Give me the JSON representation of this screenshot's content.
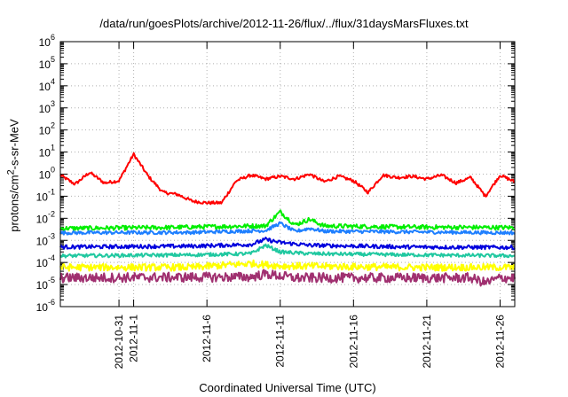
{
  "chart_data": {
    "type": "line",
    "title": "/data/run/goesPlots/archive/2012-11-26/flux/../flux/31daysMarsFluxes.txt",
    "xlabel": "Coordinated Universal Time (UTC)",
    "ylabel_html": "protons/cm<sup>2</sup>-s-sr-MeV",
    "yscale": "log",
    "ylim_exp": [
      -6,
      6
    ],
    "ytick_labels": [
      {
        "base": "10",
        "exp": "-6"
      },
      {
        "base": "10",
        "exp": "-5"
      },
      {
        "base": "10",
        "exp": "-4"
      },
      {
        "base": "10",
        "exp": "-3"
      },
      {
        "base": "10",
        "exp": "-2"
      },
      {
        "base": "10",
        "exp": "-1"
      },
      {
        "base": "10",
        "exp": "0"
      },
      {
        "base": "10",
        "exp": "1"
      },
      {
        "base": "10",
        "exp": "2"
      },
      {
        "base": "10",
        "exp": "3"
      },
      {
        "base": "10",
        "exp": "4"
      },
      {
        "base": "10",
        "exp": "5"
      },
      {
        "base": "10",
        "exp": "6"
      }
    ],
    "xlim": [
      "2012-10-27",
      "2012-11-27"
    ],
    "xticks": [
      {
        "date": "2012-10-31",
        "label": "2012-10-31"
      },
      {
        "date": "2012-11-01",
        "label": "2012-11-1"
      },
      {
        "date": "2012-11-06",
        "label": "2012-11-6"
      },
      {
        "date": "2012-11-11",
        "label": "2012-11-11"
      },
      {
        "date": "2012-11-16",
        "label": "2012-11-16"
      },
      {
        "date": "2012-11-21",
        "label": "2012-11-21"
      },
      {
        "date": "2012-11-26",
        "label": "2012-11-26"
      }
    ],
    "grid": true,
    "series": [
      {
        "color": "#ff0000",
        "points": [
          [
            "2012-10-27",
            0.9
          ],
          [
            "2012-10-28",
            0.35
          ],
          [
            "2012-10-29",
            1.2
          ],
          [
            "2012-10-30",
            0.4
          ],
          [
            "2012-10-31",
            0.5
          ],
          [
            "2012-11-01",
            8.0
          ],
          [
            "2012-11-02",
            0.8
          ],
          [
            "2012-11-03",
            0.15
          ],
          [
            "2012-11-04",
            0.12
          ],
          [
            "2012-11-05",
            0.06
          ],
          [
            "2012-11-06",
            0.05
          ],
          [
            "2012-11-07",
            0.05
          ],
          [
            "2012-11-08",
            0.5
          ],
          [
            "2012-11-09",
            0.9
          ],
          [
            "2012-11-10",
            0.6
          ],
          [
            "2012-11-11",
            0.8
          ],
          [
            "2012-11-12",
            0.6
          ],
          [
            "2012-11-13",
            1.0
          ],
          [
            "2012-11-14",
            0.45
          ],
          [
            "2012-11-15",
            0.8
          ],
          [
            "2012-11-16",
            0.5
          ],
          [
            "2012-11-17",
            0.15
          ],
          [
            "2012-11-18",
            0.9
          ],
          [
            "2012-11-19",
            0.7
          ],
          [
            "2012-11-20",
            0.8
          ],
          [
            "2012-11-21",
            0.6
          ],
          [
            "2012-11-22",
            0.9
          ],
          [
            "2012-11-23",
            0.4
          ],
          [
            "2012-11-24",
            0.7
          ],
          [
            "2012-11-25",
            0.1
          ],
          [
            "2012-11-26",
            0.9
          ],
          [
            "2012-11-27",
            0.45
          ]
        ]
      },
      {
        "color": "#00ee00",
        "points": [
          [
            "2012-10-27",
            0.0035
          ],
          [
            "2012-11-03",
            0.0038
          ],
          [
            "2012-11-09",
            0.0045
          ],
          [
            "2012-11-10",
            0.0045
          ],
          [
            "2012-11-11",
            0.02
          ],
          [
            "2012-11-12",
            0.005
          ],
          [
            "2012-11-13",
            0.009
          ],
          [
            "2012-11-14",
            0.0045
          ],
          [
            "2012-11-20",
            0.004
          ],
          [
            "2012-11-27",
            0.0038
          ]
        ]
      },
      {
        "color": "#1e7fff",
        "points": [
          [
            "2012-10-27",
            0.0022
          ],
          [
            "2012-11-05",
            0.0023
          ],
          [
            "2012-11-10",
            0.0028
          ],
          [
            "2012-11-11",
            0.006
          ],
          [
            "2012-11-12",
            0.0025
          ],
          [
            "2012-11-13",
            0.0035
          ],
          [
            "2012-11-14",
            0.0026
          ],
          [
            "2012-11-27",
            0.0022
          ]
        ]
      },
      {
        "color": "#0000dd",
        "points": [
          [
            "2012-10-27",
            0.0005
          ],
          [
            "2012-11-05",
            0.00055
          ],
          [
            "2012-11-09",
            0.00065
          ],
          [
            "2012-11-10",
            0.0011
          ],
          [
            "2012-11-11",
            0.0008
          ],
          [
            "2012-11-13",
            0.0006
          ],
          [
            "2012-11-20",
            0.0005
          ],
          [
            "2012-11-27",
            0.00048
          ]
        ]
      },
      {
        "color": "#20c8a0",
        "points": [
          [
            "2012-10-27",
            0.0002
          ],
          [
            "2012-11-05",
            0.00022
          ],
          [
            "2012-11-09",
            0.00025
          ],
          [
            "2012-11-10",
            0.0006
          ],
          [
            "2012-11-11",
            0.0003
          ],
          [
            "2012-11-13",
            0.00025
          ],
          [
            "2012-11-20",
            0.00022
          ],
          [
            "2012-11-27",
            0.0002
          ]
        ]
      },
      {
        "color": "#ffff00",
        "points": [
          [
            "2012-10-27",
            6e-05
          ],
          [
            "2012-11-05",
            6e-05
          ],
          [
            "2012-11-09",
            9e-05
          ],
          [
            "2012-11-11",
            7e-05
          ],
          [
            "2012-11-20",
            6e-05
          ],
          [
            "2012-11-27",
            6e-05
          ]
        ]
      },
      {
        "color": "#a03070",
        "points": [
          [
            "2012-10-27",
            2e-05
          ],
          [
            "2012-11-09",
            2.2e-05
          ],
          [
            "2012-11-10",
            3e-05
          ],
          [
            "2012-11-12",
            2e-05
          ],
          [
            "2012-11-24",
            2e-05
          ],
          [
            "2012-11-25",
            1.2e-05
          ],
          [
            "2012-11-26",
            2e-05
          ],
          [
            "2012-11-27",
            2e-05
          ]
        ]
      }
    ]
  }
}
